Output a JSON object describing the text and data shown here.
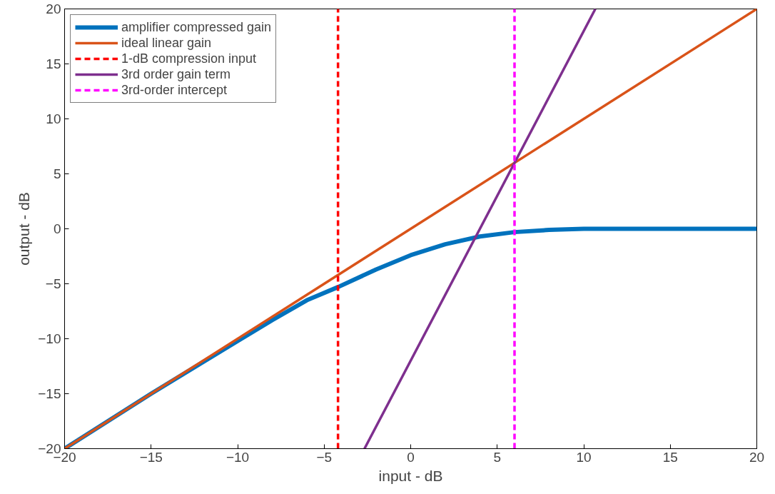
{
  "chart_data": {
    "type": "line",
    "xlabel": "input - dB",
    "ylabel": "output - dB",
    "xlim": [
      -20,
      20
    ],
    "ylim": [
      -20,
      20
    ],
    "xticks": [
      -20,
      -15,
      -10,
      -5,
      0,
      5,
      10,
      15,
      20
    ],
    "yticks": [
      -20,
      -15,
      -10,
      -5,
      0,
      5,
      10,
      15,
      20
    ],
    "grid": false,
    "legend": "top left",
    "line_style": "solid",
    "marker": "none",
    "series": [
      {
        "name": "amplifier compressed gain",
        "color": "#0072bd",
        "x": [
          -20,
          -15,
          -10,
          -8,
          -6,
          -4.2,
          -2,
          0,
          2,
          4,
          6,
          8,
          10,
          15,
          20
        ],
        "values": [
          -20,
          -15,
          -10.2,
          -8.3,
          -6.5,
          -5.3,
          -3.7,
          -2.4,
          -1.4,
          -0.7,
          -0.3,
          -0.1,
          0,
          0,
          0
        ]
      },
      {
        "name": "ideal linear gain",
        "color": "#d95319",
        "x": [
          -20,
          20
        ],
        "values": [
          -20,
          20
        ]
      },
      {
        "name": "1-dB compression input",
        "color": "#ff0000",
        "line_style": "dashed",
        "x": [
          -4.2,
          -4.2
        ],
        "values": [
          -20,
          20
        ]
      },
      {
        "name": "3rd order gain term",
        "color": "#7e2f8e",
        "x": [
          -2.67,
          10.67
        ],
        "values": [
          -20,
          20
        ]
      },
      {
        "name": "3rd-order intercept",
        "color": "#ff00ff",
        "line_style": "dashed",
        "x": [
          6,
          6
        ],
        "values": [
          -20,
          20
        ]
      }
    ]
  }
}
